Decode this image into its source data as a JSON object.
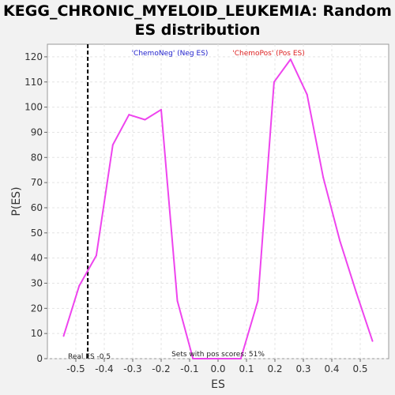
{
  "chart_data": {
    "type": "line",
    "title_line1": "KEGG_CHRONIC_MYELOID_LEUKEMIA: Random",
    "title_line2": "ES distribution",
    "xlabel": "ES",
    "ylabel": "P(ES)",
    "xlim": [
      -0.6,
      0.6
    ],
    "ylim": [
      0,
      125
    ],
    "x_ticks": [
      -0.5,
      -0.4,
      -0.3,
      -0.2,
      -0.1,
      0.0,
      0.1,
      0.2,
      0.3,
      0.4,
      0.5
    ],
    "x_tick_labels": [
      "-0.5",
      "-0.4",
      "-0.3",
      "-0.2",
      "-0.1",
      "0.0",
      "0.1",
      "0.2",
      "0.3",
      "0.4",
      "0.5"
    ],
    "y_ticks": [
      0,
      10,
      20,
      30,
      40,
      50,
      60,
      70,
      80,
      90,
      100,
      110,
      120
    ],
    "y_tick_labels": [
      "0",
      "10",
      "20",
      "30",
      "40",
      "50",
      "60",
      "70",
      "80",
      "90",
      "100",
      "110",
      "120"
    ],
    "grid": true,
    "series": [
      {
        "name": "Random ES distribution",
        "color": "#ee44ee",
        "x": [
          -0.543,
          -0.488,
          -0.428,
          -0.37,
          -0.313,
          -0.257,
          -0.2,
          -0.143,
          -0.088,
          0.08,
          0.14,
          0.197,
          0.255,
          0.313,
          0.37,
          0.428,
          0.487,
          0.543
        ],
        "y": [
          9,
          29,
          41,
          85,
          97,
          95,
          99,
          23,
          0,
          0,
          23,
          110,
          119,
          105,
          72,
          47,
          26,
          7
        ]
      }
    ],
    "legend": [
      {
        "label": "'ChemoNeg' (Neg ES)",
        "color": "#2222cc"
      },
      {
        "label": "'ChemoPos' (Pos ES)",
        "color": "#dd2222"
      }
    ],
    "real_es": {
      "value": -0.458,
      "label": "Real ES -0.5",
      "color": "#000000"
    },
    "annotation": "Sets with pos scores: 51%"
  }
}
